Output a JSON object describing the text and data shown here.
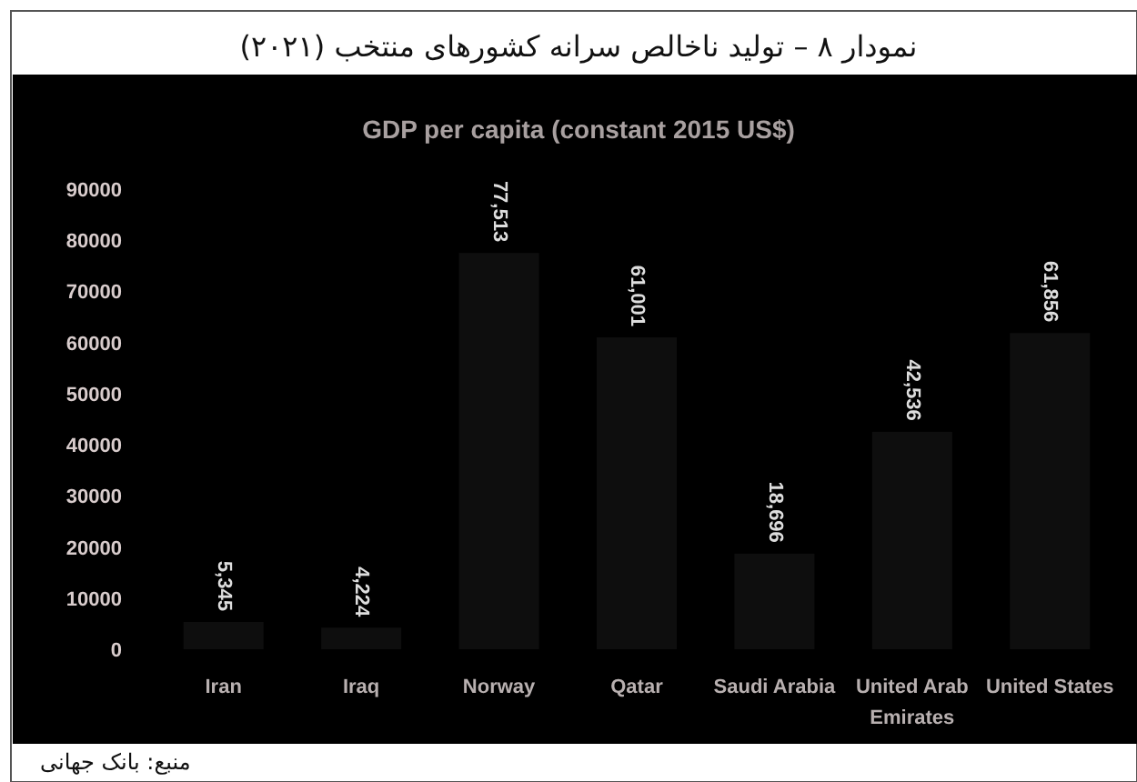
{
  "chart_data": {
    "type": "bar",
    "title": "نمودار ۸ – تولید ناخالص سرانه کشورهای منتخب (۲۰۲۱)",
    "subtitle": "GDP per capita (constant 2015 US$)",
    "categories": [
      "Iran",
      "Iraq",
      "Norway",
      "Qatar",
      "Saudi Arabia",
      "United Arab Emirates",
      "United States"
    ],
    "values": [
      5345,
      4224,
      77513,
      61001,
      18696,
      42536,
      61856
    ],
    "value_labels": [
      "5,345",
      "4,224",
      "77,513",
      "61,001",
      "18,696",
      "42,536",
      "61,856"
    ],
    "color": "#0e0e0e",
    "ylim": [
      0,
      90000
    ],
    "yticks": [
      0,
      10000,
      20000,
      30000,
      40000,
      50000,
      60000,
      70000,
      80000,
      90000
    ],
    "grid": false,
    "annotations": [
      "منبع: بانک جهانی"
    ]
  }
}
